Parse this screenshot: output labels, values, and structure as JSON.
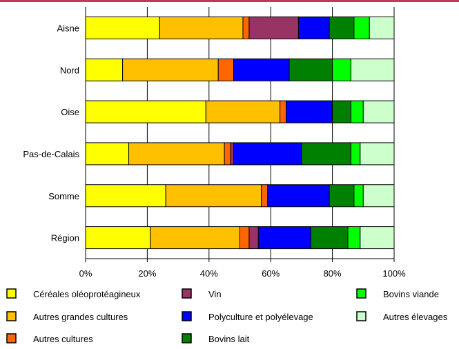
{
  "chart_data": {
    "type": "bar",
    "orientation": "horizontal",
    "stacked": "percent",
    "categories": [
      "Aisne",
      "Nord",
      "Oise",
      "Pas-de-Calais",
      "Somme",
      "Région"
    ],
    "xlim": [
      0,
      100
    ],
    "x_ticks": [
      "0%",
      "20%",
      "40%",
      "60%",
      "80%",
      "100%"
    ],
    "grid": "vertical",
    "legend_position": "bottom",
    "series": [
      {
        "name": "Céréales oléoprotéagineux",
        "color": "#ffff00",
        "values": [
          24,
          12,
          39,
          14,
          26,
          21
        ]
      },
      {
        "name": "Autres grandes cultures",
        "color": "#ffc000",
        "values": [
          27,
          31,
          24,
          31,
          31,
          29
        ]
      },
      {
        "name": "Autres cultures",
        "color": "#ff6600",
        "values": [
          2,
          5,
          2,
          2,
          2,
          3
        ]
      },
      {
        "name": "Vin",
        "color": "#993366",
        "values": [
          16,
          0,
          0,
          1,
          0,
          3
        ]
      },
      {
        "name": "Polyculture et polyélevage",
        "color": "#0000ff",
        "values": [
          10,
          18,
          15,
          22,
          20,
          17
        ]
      },
      {
        "name": "Bovins lait",
        "color": "#008000",
        "values": [
          8,
          14,
          6,
          16,
          8,
          12
        ]
      },
      {
        "name": "Bovins viande",
        "color": "#00ff00",
        "values": [
          5,
          6,
          4,
          3,
          3,
          4
        ]
      },
      {
        "name": "Autres élevages",
        "color": "#ccffcc",
        "values": [
          8,
          14,
          10,
          11,
          10,
          11
        ]
      }
    ]
  },
  "colors": {
    "top_border": "#c0395a",
    "grid": "#000000",
    "bar_outline": "#000000"
  }
}
